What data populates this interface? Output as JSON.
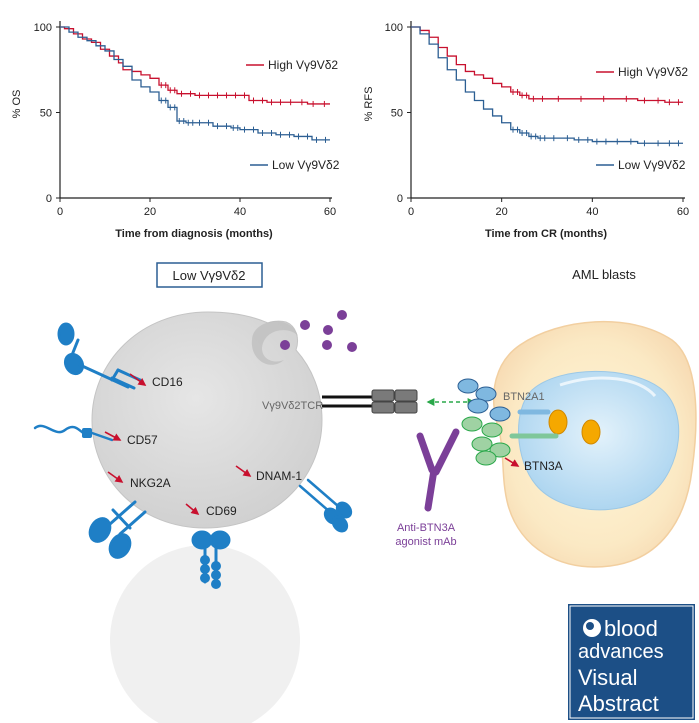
{
  "chart_data": [
    {
      "type": "line",
      "ylabel": "% OS",
      "xlabel": "Time from diagnosis (months)",
      "xlim": [
        0,
        60
      ],
      "ylim": [
        0,
        100
      ],
      "xticks": [
        0,
        20,
        40,
        60
      ],
      "yticks": [
        0,
        50,
        100
      ],
      "series": [
        {
          "name": "High Vγ9Vδ2",
          "color": "#c8102e",
          "points": [
            [
              0,
              100
            ],
            [
              1,
              99
            ],
            [
              3,
              96
            ],
            [
              5,
              93
            ],
            [
              7,
              91
            ],
            [
              9,
              87
            ],
            [
              11,
              83
            ],
            [
              13,
              79
            ],
            [
              14,
              75
            ],
            [
              16,
              74
            ],
            [
              18,
              72
            ],
            [
              20,
              70
            ],
            [
              22,
              66
            ],
            [
              24,
              63
            ],
            [
              26,
              61
            ],
            [
              30,
              60
            ],
            [
              34,
              60
            ],
            [
              38,
              60
            ],
            [
              42,
              57
            ],
            [
              46,
              56
            ],
            [
              50,
              56
            ],
            [
              55,
              55
            ],
            [
              60,
              55
            ]
          ]
        },
        {
          "name": "Low Vγ9Vδ2",
          "color": "#2c5f93",
          "points": [
            [
              0,
              100
            ],
            [
              2,
              97
            ],
            [
              4,
              94
            ],
            [
              6,
              92
            ],
            [
              8,
              89
            ],
            [
              10,
              86
            ],
            [
              12,
              81
            ],
            [
              14,
              77
            ],
            [
              16,
              69
            ],
            [
              18,
              65
            ],
            [
              20,
              62
            ],
            [
              22,
              57
            ],
            [
              24,
              53
            ],
            [
              26,
              45
            ],
            [
              28,
              44
            ],
            [
              30,
              44
            ],
            [
              34,
              42
            ],
            [
              38,
              41
            ],
            [
              40,
              40
            ],
            [
              44,
              38
            ],
            [
              48,
              37
            ],
            [
              52,
              36
            ],
            [
              56,
              34
            ],
            [
              60,
              34
            ]
          ]
        }
      ]
    },
    {
      "type": "line",
      "ylabel": "% RFS",
      "xlabel": "Time from CR (months)",
      "xlim": [
        0,
        60
      ],
      "ylim": [
        0,
        100
      ],
      "xticks": [
        0,
        20,
        40,
        60
      ],
      "yticks": [
        0,
        50,
        100
      ],
      "series": [
        {
          "name": "High Vγ9Vδ2",
          "color": "#c8102e",
          "points": [
            [
              0,
              100
            ],
            [
              2,
              98
            ],
            [
              4,
              94
            ],
            [
              6,
              88
            ],
            [
              8,
              83
            ],
            [
              10,
              78
            ],
            [
              12,
              74
            ],
            [
              14,
              72
            ],
            [
              16,
              70
            ],
            [
              18,
              67
            ],
            [
              20,
              65
            ],
            [
              22,
              62
            ],
            [
              24,
              60
            ],
            [
              26,
              58
            ],
            [
              30,
              58
            ],
            [
              40,
              58
            ],
            [
              50,
              57
            ],
            [
              56,
              56
            ],
            [
              60,
              56
            ]
          ]
        },
        {
          "name": "Low Vγ9Vδ2",
          "color": "#2c5f93",
          "points": [
            [
              0,
              100
            ],
            [
              2,
              96
            ],
            [
              4,
              90
            ],
            [
              6,
              82
            ],
            [
              8,
              75
            ],
            [
              10,
              69
            ],
            [
              12,
              62
            ],
            [
              14,
              57
            ],
            [
              16,
              52
            ],
            [
              18,
              48
            ],
            [
              20,
              44
            ],
            [
              22,
              40
            ],
            [
              24,
              38
            ],
            [
              26,
              36
            ],
            [
              28,
              35
            ],
            [
              30,
              35
            ],
            [
              36,
              34
            ],
            [
              40,
              33
            ],
            [
              44,
              33
            ],
            [
              50,
              32
            ],
            [
              56,
              32
            ],
            [
              60,
              32
            ]
          ]
        }
      ]
    }
  ],
  "diagram": {
    "title_box": "Low Vγ9Vδ2",
    "aml_label": "AML blasts",
    "tcr_label": "Vγ9Vδ2TCR",
    "markers": {
      "cd16": "CD16",
      "cd57": "CD57",
      "nkg2a": "NKG2A",
      "cd69": "CD69",
      "dnam1": "DNAM-1",
      "btn2a1": "BTN2A1",
      "btn3a": "BTN3A"
    },
    "antibody_label_1": "Anti-BTN3A",
    "antibody_label_2": "agonist mAb",
    "colors": {
      "cell_gray": "#d6d6d6",
      "receptor_blue": "#1f7fc6",
      "arrow_red": "#c8102e",
      "green": "#2aa84a",
      "purple": "#7b3f98",
      "gold": "#f5a800"
    }
  },
  "logo": {
    "line1": "blood",
    "line2": "advances",
    "line3": "Visual",
    "line4": "Abstract"
  }
}
